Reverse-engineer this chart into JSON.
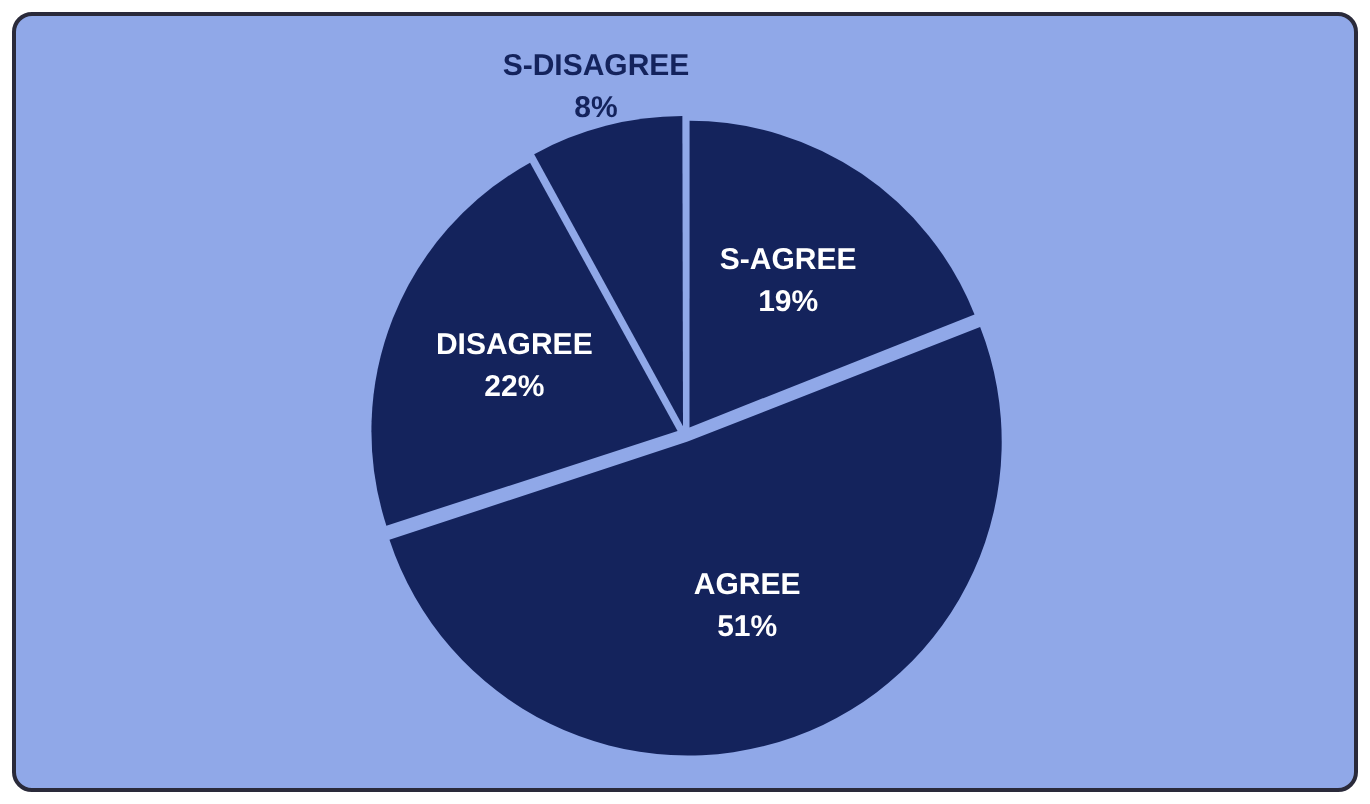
{
  "chart_data": {
    "type": "pie",
    "categories": [
      "S-AGREE",
      "AGREE",
      "DISAGREE",
      "S-DISAGREE"
    ],
    "values": [
      19,
      51,
      22,
      8
    ],
    "colors": [
      "#14235c",
      "#14235c",
      "#14235c",
      "#14235c"
    ],
    "value_labels": [
      "19%",
      "51%",
      "22%",
      "8%"
    ],
    "legend": false
  }
}
